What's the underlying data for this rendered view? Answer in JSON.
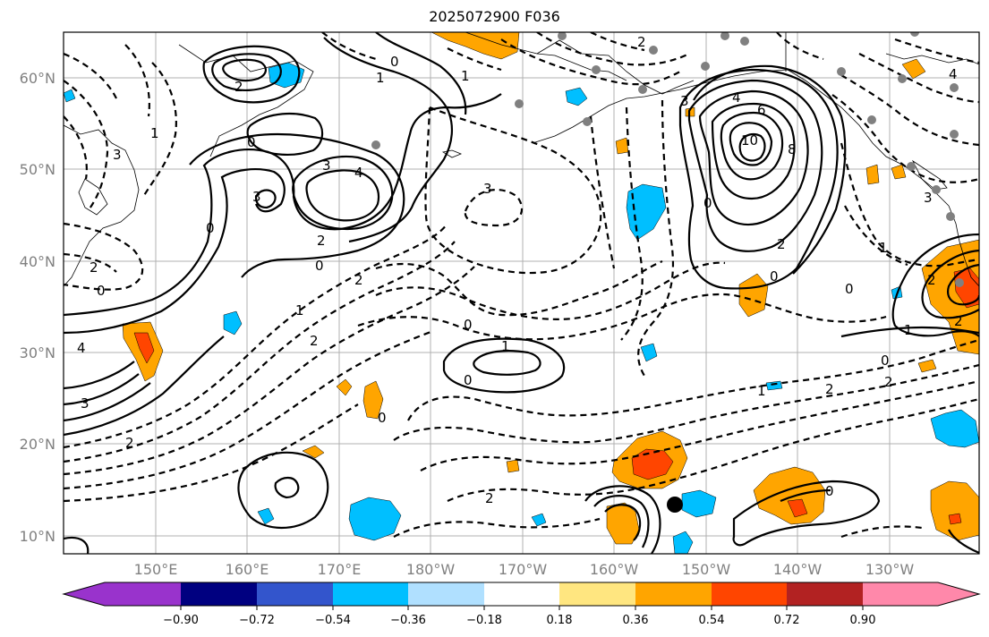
{
  "title": "2025072900 F036",
  "axes": {
    "lat_labels": [
      "60°N",
      "50°N",
      "40°N",
      "30°N",
      "20°N",
      "10°N"
    ],
    "lon_labels": [
      "150°E",
      "160°E",
      "170°E",
      "180°W",
      "170°W",
      "160°W",
      "150°W",
      "140°W",
      "130°W"
    ]
  },
  "colorbar": {
    "tick_labels": [
      "−0.90",
      "−0.72",
      "−0.54",
      "−0.36",
      "−0.18",
      "0.18",
      "0.36",
      "0.54",
      "0.72",
      "0.90"
    ],
    "colors": [
      "#9933cc",
      "#000080",
      "#3355cc",
      "#00bfff",
      "#b0e0ff",
      "#ffffff",
      "#ffe680",
      "#ffa500",
      "#ff4500",
      "#b22222",
      "#ff88aa"
    ]
  },
  "contour_labels": {
    "l01": "2",
    "l02": "0",
    "l03": "1",
    "l04": "1",
    "l05": "2",
    "l06": "0",
    "l07": "3",
    "l08": "3",
    "l09": "4",
    "l10": "3",
    "l11": "2",
    "l12": "0",
    "l13": "2",
    "l14": "4",
    "l15": "6",
    "l16": "10",
    "l17": "8",
    "l18": "0",
    "l19": "2",
    "l20": "0",
    "l21": "3",
    "l22": "1",
    "l23": "0",
    "l24": "0",
    "l25": "0",
    "l26": "1",
    "l27": "1",
    "l28": "2",
    "l29": "2",
    "l30": "0",
    "l31": "1",
    "l32": "2",
    "l33": "4",
    "l34": "3",
    "l35": "2",
    "l36": "0",
    "l37": "2",
    "l38": "0",
    "l39": "1",
    "l40": "4",
    "l41": "0",
    "l42": "1",
    "l43": "2",
    "l44": "2",
    "l45": "3",
    "l46": "2",
    "l47": "3",
    "l48": "0"
  },
  "colors": {
    "contour": "#000000",
    "positive_fill": "#ffa500",
    "strong_positive_fill": "#ff4500",
    "negative_fill": "#00bfff",
    "grid": "#b0b0b0",
    "station_marker": "#808080"
  }
}
